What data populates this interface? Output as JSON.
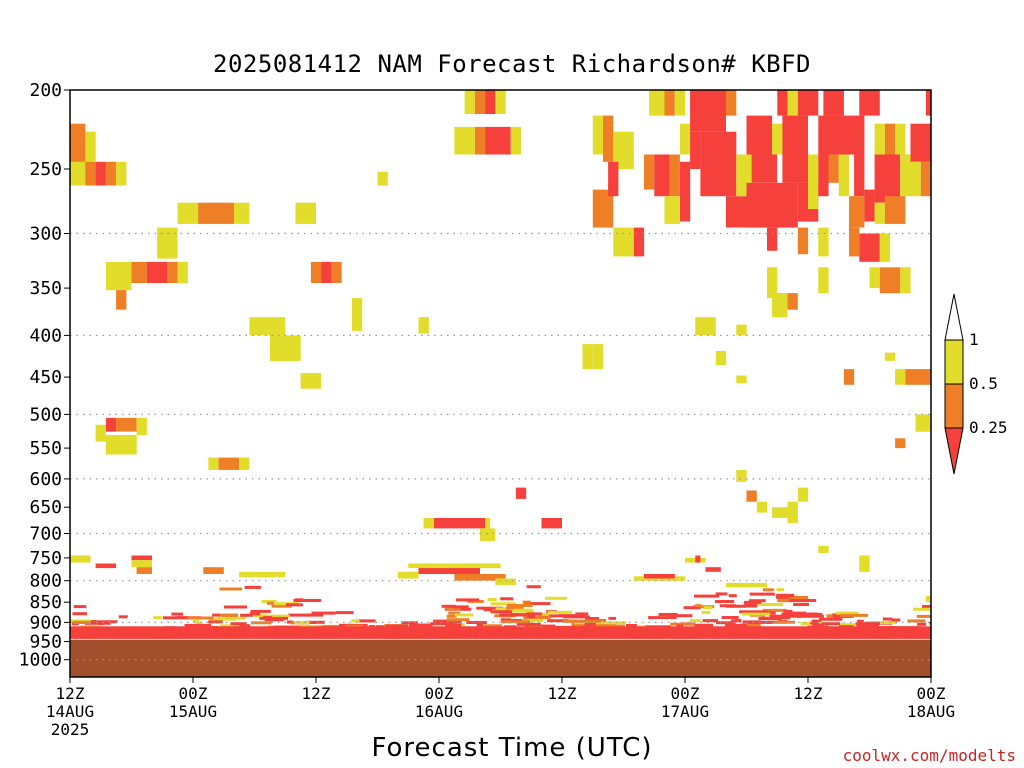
{
  "colors": {
    "red": "#f5403c",
    "orange": "#ee7f26",
    "yellow": "#e2dc2b",
    "surface": "#a14f2c",
    "credit": "#cc2222",
    "grid": "#999999"
  },
  "chart_data": {
    "type": "heatmap",
    "title": "2025081412 NAM Forecast Richardson# KBFD",
    "xlabel": "Forecast Time (UTC)",
    "credit": "coolwx.com/modelts",
    "x_ticks": [
      {
        "line1": "12Z",
        "line2": "14AUG",
        "line3": "2025",
        "hours": 0
      },
      {
        "line1": "00Z",
        "line2": "15AUG",
        "line3": "",
        "hours": 12
      },
      {
        "line1": "12Z",
        "line2": "",
        "line3": "",
        "hours": 24
      },
      {
        "line1": "00Z",
        "line2": "16AUG",
        "line3": "",
        "hours": 36
      },
      {
        "line1": "12Z",
        "line2": "",
        "line3": "",
        "hours": 48
      },
      {
        "line1": "00Z",
        "line2": "17AUG",
        "line3": "",
        "hours": 60
      },
      {
        "line1": "12Z",
        "line2": "",
        "line3": "",
        "hours": 72
      },
      {
        "line1": "00Z",
        "line2": "18AUG",
        "line3": "",
        "hours": 84
      }
    ],
    "xlim_hours": [
      0,
      84
    ],
    "y_ticks": [
      "200",
      "250",
      "300",
      "350",
      "400",
      "450",
      "500",
      "550",
      "600",
      "650",
      "700",
      "750",
      "800",
      "850",
      "900",
      "950",
      "1000"
    ],
    "y_tick_values": [
      200,
      250,
      300,
      350,
      400,
      450,
      500,
      550,
      600,
      650,
      700,
      750,
      800,
      850,
      900,
      950,
      1000
    ],
    "ylim_hpa": [
      200,
      1050
    ],
    "y_scale": "log",
    "grid_levels": [
      300,
      400,
      500,
      600,
      700,
      800,
      900,
      1000
    ],
    "colorbar": {
      "labels": [
        "1",
        "0.5",
        "0.25"
      ],
      "bins": [
        {
          "range": "0.5-1",
          "color": "yellow"
        },
        {
          "range": "0.25-0.5",
          "color": "orange"
        },
        {
          "range": "<0.25",
          "color": "red"
        }
      ]
    },
    "cells": [
      {
        "h": 38.5,
        "h2": 39.5,
        "p": 200,
        "p2": 214,
        "c": "yellow"
      },
      {
        "h": 39.5,
        "h2": 40.5,
        "p": 200,
        "p2": 214,
        "c": "orange"
      },
      {
        "h": 40.5,
        "h2": 41.5,
        "p": 200,
        "p2": 214,
        "c": "red"
      },
      {
        "h": 41.5,
        "h2": 42.5,
        "p": 200,
        "p2": 214,
        "c": "yellow"
      },
      {
        "h": 37.5,
        "h2": 39.5,
        "p": 222,
        "p2": 240,
        "c": "yellow"
      },
      {
        "h": 39.5,
        "h2": 40.5,
        "p": 222,
        "p2": 240,
        "c": "orange"
      },
      {
        "h": 40.5,
        "h2": 43,
        "p": 222,
        "p2": 240,
        "c": "red"
      },
      {
        "h": 43,
        "h2": 44,
        "p": 222,
        "p2": 240,
        "c": "yellow"
      },
      {
        "h": 0,
        "h2": 1.5,
        "p": 220,
        "p2": 260,
        "c": "orange"
      },
      {
        "h": 1.5,
        "h2": 2.5,
        "p": 225,
        "p2": 245,
        "c": "yellow"
      },
      {
        "h": 0,
        "h2": 1.5,
        "p": 245,
        "p2": 262,
        "c": "yellow"
      },
      {
        "h": 1.5,
        "h2": 2.5,
        "p": 245,
        "p2": 262,
        "c": "orange"
      },
      {
        "h": 2.5,
        "h2": 3.5,
        "p": 245,
        "p2": 262,
        "c": "red"
      },
      {
        "h": 3.5,
        "h2": 4.5,
        "p": 245,
        "p2": 262,
        "c": "orange"
      },
      {
        "h": 4.5,
        "h2": 5.5,
        "p": 245,
        "p2": 262,
        "c": "yellow"
      },
      {
        "h": 10.5,
        "h2": 12.5,
        "p": 275,
        "p2": 292,
        "c": "yellow"
      },
      {
        "h": 12.5,
        "h2": 16,
        "p": 275,
        "p2": 292,
        "c": "orange"
      },
      {
        "h": 16,
        "h2": 17.5,
        "p": 275,
        "p2": 292,
        "c": "yellow"
      },
      {
        "h": 22,
        "h2": 24,
        "p": 275,
        "p2": 292,
        "c": "yellow"
      },
      {
        "h": 30,
        "h2": 31,
        "p": 252,
        "p2": 262,
        "c": "yellow"
      },
      {
        "h": 8.5,
        "h2": 10.5,
        "p": 295,
        "p2": 322,
        "c": "yellow"
      },
      {
        "h": 3.5,
        "h2": 6,
        "p": 325,
        "p2": 352,
        "c": "yellow"
      },
      {
        "h": 6,
        "h2": 7.5,
        "p": 325,
        "p2": 345,
        "c": "orange"
      },
      {
        "h": 7.5,
        "h2": 9.5,
        "p": 325,
        "p2": 345,
        "c": "red"
      },
      {
        "h": 9.5,
        "h2": 10.5,
        "p": 325,
        "p2": 345,
        "c": "orange"
      },
      {
        "h": 10.5,
        "h2": 11.5,
        "p": 325,
        "p2": 345,
        "c": "yellow"
      },
      {
        "h": 4.5,
        "h2": 5.5,
        "p": 352,
        "p2": 372,
        "c": "orange"
      },
      {
        "h": 23.5,
        "h2": 24.5,
        "p": 325,
        "p2": 345,
        "c": "orange"
      },
      {
        "h": 24.5,
        "h2": 25.5,
        "p": 325,
        "p2": 345,
        "c": "red"
      },
      {
        "h": 25.5,
        "h2": 26.5,
        "p": 325,
        "p2": 345,
        "c": "orange"
      },
      {
        "h": 27.5,
        "h2": 28.5,
        "p": 360,
        "p2": 395,
        "c": "yellow"
      },
      {
        "h": 34,
        "h2": 35,
        "p": 380,
        "p2": 398,
        "c": "yellow"
      },
      {
        "h": 17.5,
        "h2": 21,
        "p": 380,
        "p2": 400,
        "c": "yellow"
      },
      {
        "h": 19.5,
        "h2": 22.5,
        "p": 400,
        "p2": 430,
        "c": "yellow"
      },
      {
        "h": 22.5,
        "h2": 24.5,
        "p": 445,
        "p2": 465,
        "c": "yellow"
      },
      {
        "h": 2.5,
        "h2": 3.5,
        "p": 515,
        "p2": 540,
        "c": "yellow"
      },
      {
        "h": 3.5,
        "h2": 4.5,
        "p": 505,
        "p2": 525,
        "c": "red"
      },
      {
        "h": 4.5,
        "h2": 6.5,
        "p": 505,
        "p2": 525,
        "c": "orange"
      },
      {
        "h": 6.5,
        "h2": 7.5,
        "p": 505,
        "p2": 530,
        "c": "yellow"
      },
      {
        "h": 3.5,
        "h2": 6.5,
        "p": 530,
        "p2": 560,
        "c": "yellow"
      },
      {
        "h": 13.5,
        "h2": 14.5,
        "p": 565,
        "p2": 585,
        "c": "yellow"
      },
      {
        "h": 14.5,
        "h2": 16.5,
        "p": 565,
        "p2": 585,
        "c": "orange"
      },
      {
        "h": 16.5,
        "h2": 17.5,
        "p": 565,
        "p2": 585,
        "c": "yellow"
      },
      {
        "h": 51,
        "h2": 53,
        "p": 265,
        "p2": 295,
        "c": "orange"
      },
      {
        "h": 53,
        "h2": 55,
        "p": 295,
        "p2": 320,
        "c": "yellow"
      },
      {
        "h": 55,
        "h2": 56,
        "p": 295,
        "p2": 320,
        "c": "red"
      },
      {
        "h": 51,
        "h2": 52,
        "p": 215,
        "p2": 240,
        "c": "yellow"
      },
      {
        "h": 52,
        "h2": 53,
        "p": 215,
        "p2": 245,
        "c": "orange"
      },
      {
        "h": 53,
        "h2": 55,
        "p": 225,
        "p2": 250,
        "c": "yellow"
      },
      {
        "h": 52.5,
        "h2": 53.5,
        "p": 245,
        "p2": 270,
        "c": "red"
      },
      {
        "h": 56.5,
        "h2": 58,
        "p": 200,
        "p2": 215,
        "c": "yellow"
      },
      {
        "h": 58,
        "h2": 59,
        "p": 200,
        "p2": 215,
        "c": "orange"
      },
      {
        "h": 59,
        "h2": 60,
        "p": 200,
        "p2": 215,
        "c": "yellow"
      },
      {
        "h": 56,
        "h2": 57,
        "p": 240,
        "p2": 265,
        "c": "orange"
      },
      {
        "h": 57,
        "h2": 58.5,
        "p": 240,
        "p2": 270,
        "c": "red"
      },
      {
        "h": 58.5,
        "h2": 59.5,
        "p": 240,
        "p2": 270,
        "c": "orange"
      },
      {
        "h": 59.5,
        "h2": 60.5,
        "p": 245,
        "p2": 290,
        "c": "red"
      },
      {
        "h": 58,
        "h2": 59.5,
        "p": 270,
        "p2": 292,
        "c": "yellow"
      },
      {
        "h": 59.5,
        "h2": 60.5,
        "p": 220,
        "p2": 240,
        "c": "yellow"
      },
      {
        "h": 60.5,
        "h2": 61.5,
        "p": 225,
        "p2": 250,
        "c": "red"
      },
      {
        "h": 60.5,
        "h2": 64,
        "p": 200,
        "p2": 225,
        "c": "red"
      },
      {
        "h": 64,
        "h2": 65,
        "p": 200,
        "p2": 215,
        "c": "orange"
      },
      {
        "h": 61.5,
        "h2": 65,
        "p": 225,
        "p2": 270,
        "c": "red"
      },
      {
        "h": 64,
        "h2": 66,
        "p": 270,
        "p2": 295,
        "c": "red"
      },
      {
        "h": 65,
        "h2": 66.5,
        "p": 240,
        "p2": 270,
        "c": "yellow"
      },
      {
        "h": 66,
        "h2": 68.5,
        "p": 215,
        "p2": 240,
        "c": "red"
      },
      {
        "h": 66.5,
        "h2": 69,
        "p": 240,
        "p2": 260,
        "c": "red"
      },
      {
        "h": 66,
        "h2": 71,
        "p": 260,
        "p2": 295,
        "c": "red"
      },
      {
        "h": 68,
        "h2": 69,
        "p": 295,
        "p2": 315,
        "c": "red"
      },
      {
        "h": 68.5,
        "h2": 69.5,
        "p": 220,
        "p2": 240,
        "c": "yellow"
      },
      {
        "h": 69,
        "h2": 70,
        "p": 200,
        "p2": 215,
        "c": "red"
      },
      {
        "h": 70,
        "h2": 71,
        "p": 200,
        "p2": 215,
        "c": "yellow"
      },
      {
        "h": 69.5,
        "h2": 72,
        "p": 215,
        "p2": 260,
        "c": "red"
      },
      {
        "h": 71,
        "h2": 73,
        "p": 200,
        "p2": 215,
        "c": "red"
      },
      {
        "h": 71,
        "h2": 73,
        "p": 260,
        "p2": 290,
        "c": "red"
      },
      {
        "h": 72,
        "h2": 73,
        "p": 240,
        "p2": 280,
        "c": "yellow"
      },
      {
        "h": 73,
        "h2": 76,
        "p": 215,
        "p2": 240,
        "c": "red"
      },
      {
        "h": 73,
        "h2": 74,
        "p": 240,
        "p2": 270,
        "c": "red"
      },
      {
        "h": 74,
        "h2": 75,
        "p": 240,
        "p2": 260,
        "c": "orange"
      },
      {
        "h": 75,
        "h2": 76,
        "p": 240,
        "p2": 270,
        "c": "yellow"
      },
      {
        "h": 73.5,
        "h2": 75.5,
        "p": 200,
        "p2": 215,
        "c": "red"
      },
      {
        "h": 76,
        "h2": 77.5,
        "p": 215,
        "p2": 240,
        "c": "red"
      },
      {
        "h": 77,
        "h2": 78,
        "p": 200,
        "p2": 215,
        "c": "red"
      },
      {
        "h": 76.5,
        "h2": 77.5,
        "p": 240,
        "p2": 270,
        "c": "red"
      },
      {
        "h": 76,
        "h2": 77.5,
        "p": 270,
        "p2": 295,
        "c": "orange"
      },
      {
        "h": 77.5,
        "h2": 78.5,
        "p": 265,
        "p2": 290,
        "c": "red"
      },
      {
        "h": 78.5,
        "h2": 79.5,
        "p": 220,
        "p2": 240,
        "c": "yellow"
      },
      {
        "h": 79.5,
        "h2": 80.5,
        "p": 220,
        "p2": 240,
        "c": "orange"
      },
      {
        "h": 80.5,
        "h2": 81.5,
        "p": 220,
        "p2": 240,
        "c": "yellow"
      },
      {
        "h": 78.5,
        "h2": 81,
        "p": 240,
        "p2": 275,
        "c": "red"
      },
      {
        "h": 81,
        "h2": 82,
        "p": 240,
        "p2": 270,
        "c": "yellow"
      },
      {
        "h": 78.5,
        "h2": 79.5,
        "p": 275,
        "p2": 292,
        "c": "yellow"
      },
      {
        "h": 79.5,
        "h2": 81.5,
        "p": 270,
        "p2": 292,
        "c": "orange"
      },
      {
        "h": 82,
        "h2": 84,
        "p": 220,
        "p2": 245,
        "c": "red"
      },
      {
        "h": 82,
        "h2": 83,
        "p": 245,
        "p2": 270,
        "c": "yellow"
      },
      {
        "h": 83,
        "h2": 84,
        "p": 245,
        "p2": 270,
        "c": "orange"
      },
      {
        "h": 78,
        "h2": 79,
        "p": 200,
        "p2": 215,
        "c": "red"
      },
      {
        "h": 83.5,
        "h2": 84,
        "p": 200,
        "p2": 215,
        "c": "red"
      },
      {
        "h": 71,
        "h2": 72,
        "p": 295,
        "p2": 318,
        "c": "orange"
      },
      {
        "h": 73,
        "h2": 74,
        "p": 295,
        "p2": 320,
        "c": "yellow"
      },
      {
        "h": 76,
        "h2": 77,
        "p": 295,
        "p2": 320,
        "c": "orange"
      },
      {
        "h": 77,
        "h2": 79,
        "p": 300,
        "p2": 325,
        "c": "red"
      },
      {
        "h": 79,
        "h2": 80,
        "p": 300,
        "p2": 325,
        "c": "yellow"
      },
      {
        "h": 78,
        "h2": 79,
        "p": 330,
        "p2": 350,
        "c": "yellow"
      },
      {
        "h": 79,
        "h2": 81,
        "p": 330,
        "p2": 355,
        "c": "orange"
      },
      {
        "h": 81,
        "h2": 82,
        "p": 330,
        "p2": 355,
        "c": "yellow"
      },
      {
        "h": 68,
        "h2": 69,
        "p": 330,
        "p2": 360,
        "c": "yellow"
      },
      {
        "h": 73,
        "h2": 74,
        "p": 330,
        "p2": 355,
        "c": "yellow"
      },
      {
        "h": 69,
        "h2": 71,
        "p": 355,
        "p2": 372,
        "c": "orange"
      },
      {
        "h": 68.5,
        "h2": 70,
        "p": 355,
        "p2": 380,
        "c": "yellow"
      },
      {
        "h": 61,
        "h2": 63,
        "p": 380,
        "p2": 400,
        "c": "yellow"
      },
      {
        "h": 65,
        "h2": 66,
        "p": 388,
        "p2": 400,
        "c": "yellow"
      },
      {
        "h": 63,
        "h2": 64,
        "p": 418,
        "p2": 435,
        "c": "yellow"
      },
      {
        "h": 50,
        "h2": 51,
        "p": 410,
        "p2": 440,
        "c": "yellow"
      },
      {
        "h": 51,
        "h2": 52,
        "p": 410,
        "p2": 440,
        "c": "yellow"
      },
      {
        "h": 65,
        "h2": 66,
        "p": 448,
        "p2": 458,
        "c": "yellow"
      },
      {
        "h": 75.5,
        "h2": 76.5,
        "p": 440,
        "p2": 460,
        "c": "orange"
      },
      {
        "h": 79.5,
        "h2": 80.5,
        "p": 420,
        "p2": 430,
        "c": "yellow"
      },
      {
        "h": 80.5,
        "h2": 81.5,
        "p": 440,
        "p2": 460,
        "c": "yellow"
      },
      {
        "h": 81.5,
        "h2": 84,
        "p": 440,
        "p2": 460,
        "c": "orange"
      },
      {
        "h": 82.5,
        "h2": 84,
        "p": 500,
        "p2": 525,
        "c": "yellow"
      },
      {
        "h": 80.5,
        "h2": 81.5,
        "p": 535,
        "p2": 550,
        "c": "orange"
      },
      {
        "h": 65,
        "h2": 66,
        "p": 585,
        "p2": 605,
        "c": "yellow"
      },
      {
        "h": 66,
        "h2": 67,
        "p": 620,
        "p2": 640,
        "c": "orange"
      },
      {
        "h": 67,
        "h2": 68,
        "p": 640,
        "p2": 660,
        "c": "yellow"
      },
      {
        "h": 71,
        "h2": 72,
        "p": 615,
        "p2": 640,
        "c": "yellow"
      },
      {
        "h": 70,
        "h2": 71,
        "p": 640,
        "p2": 680,
        "c": "yellow"
      },
      {
        "h": 68.5,
        "h2": 70,
        "p": 650,
        "p2": 670,
        "c": "yellow"
      },
      {
        "h": 73,
        "h2": 74,
        "p": 725,
        "p2": 740,
        "c": "yellow"
      },
      {
        "h": 77,
        "h2": 78,
        "p": 745,
        "p2": 780,
        "c": "yellow"
      },
      {
        "h": 43.5,
        "h2": 44.5,
        "p": 615,
        "p2": 635,
        "c": "red"
      },
      {
        "h": 34.5,
        "h2": 35.5,
        "p": 670,
        "p2": 690,
        "c": "yellow"
      },
      {
        "h": 35.5,
        "h2": 40.5,
        "p": 670,
        "p2": 690,
        "c": "red"
      },
      {
        "h": 40.5,
        "h2": 41,
        "p": 670,
        "p2": 690,
        "c": "yellow"
      },
      {
        "h": 40,
        "h2": 41.5,
        "p": 690,
        "p2": 715,
        "c": "yellow"
      },
      {
        "h": 46,
        "h2": 48,
        "p": 670,
        "p2": 690,
        "c": "red"
      },
      {
        "h": 0,
        "h2": 2,
        "p": 745,
        "p2": 760,
        "c": "yellow"
      },
      {
        "h": 2.5,
        "h2": 4.5,
        "p": 762,
        "p2": 772,
        "c": "red"
      },
      {
        "h": 6,
        "h2": 8,
        "p": 745,
        "p2": 755,
        "c": "red"
      },
      {
        "h": 6,
        "h2": 8,
        "p": 755,
        "p2": 770,
        "c": "yellow"
      },
      {
        "h": 6.5,
        "h2": 8,
        "p": 770,
        "p2": 785,
        "c": "orange"
      },
      {
        "h": 13,
        "h2": 15,
        "p": 770,
        "p2": 785,
        "c": "orange"
      },
      {
        "h": 16.5,
        "h2": 21,
        "p": 780,
        "p2": 792,
        "c": "yellow"
      },
      {
        "h": 32,
        "h2": 34,
        "p": 780,
        "p2": 795,
        "c": "yellow"
      },
      {
        "h": 34,
        "h2": 40,
        "p": 770,
        "p2": 785,
        "c": "red"
      },
      {
        "h": 33,
        "h2": 42,
        "p": 762,
        "p2": 772,
        "c": "yellow"
      },
      {
        "h": 37.5,
        "h2": 42.5,
        "p": 785,
        "p2": 800,
        "c": "orange"
      },
      {
        "h": 41.5,
        "h2": 43.5,
        "p": 795,
        "p2": 810,
        "c": "yellow"
      },
      {
        "h": 55,
        "h2": 60,
        "p": 790,
        "p2": 800,
        "c": "yellow"
      },
      {
        "h": 56,
        "h2": 59,
        "p": 785,
        "p2": 795,
        "c": "red"
      },
      {
        "h": 60,
        "h2": 62,
        "p": 750,
        "p2": 760,
        "c": "yellow"
      },
      {
        "h": 61,
        "h2": 61.5,
        "p": 745,
        "p2": 760,
        "c": "red"
      },
      {
        "h": 62,
        "h2": 63.5,
        "p": 770,
        "p2": 780,
        "c": "red"
      },
      {
        "h": 64,
        "h2": 68,
        "p": 805,
        "p2": 815,
        "c": "yellow"
      },
      {
        "h": 69,
        "h2": 72,
        "p": 835,
        "p2": 850,
        "c": "orange"
      },
      {
        "h": 83.5,
        "h2": 84,
        "p": 835,
        "p2": 850,
        "c": "yellow"
      }
    ],
    "low_levels_note": "dense mixed bins below 800 hPa",
    "band": {
      "p_top": 910,
      "p_bottom": 943
    },
    "surface": {
      "p_top": 945,
      "p_bottom": 1050
    }
  }
}
